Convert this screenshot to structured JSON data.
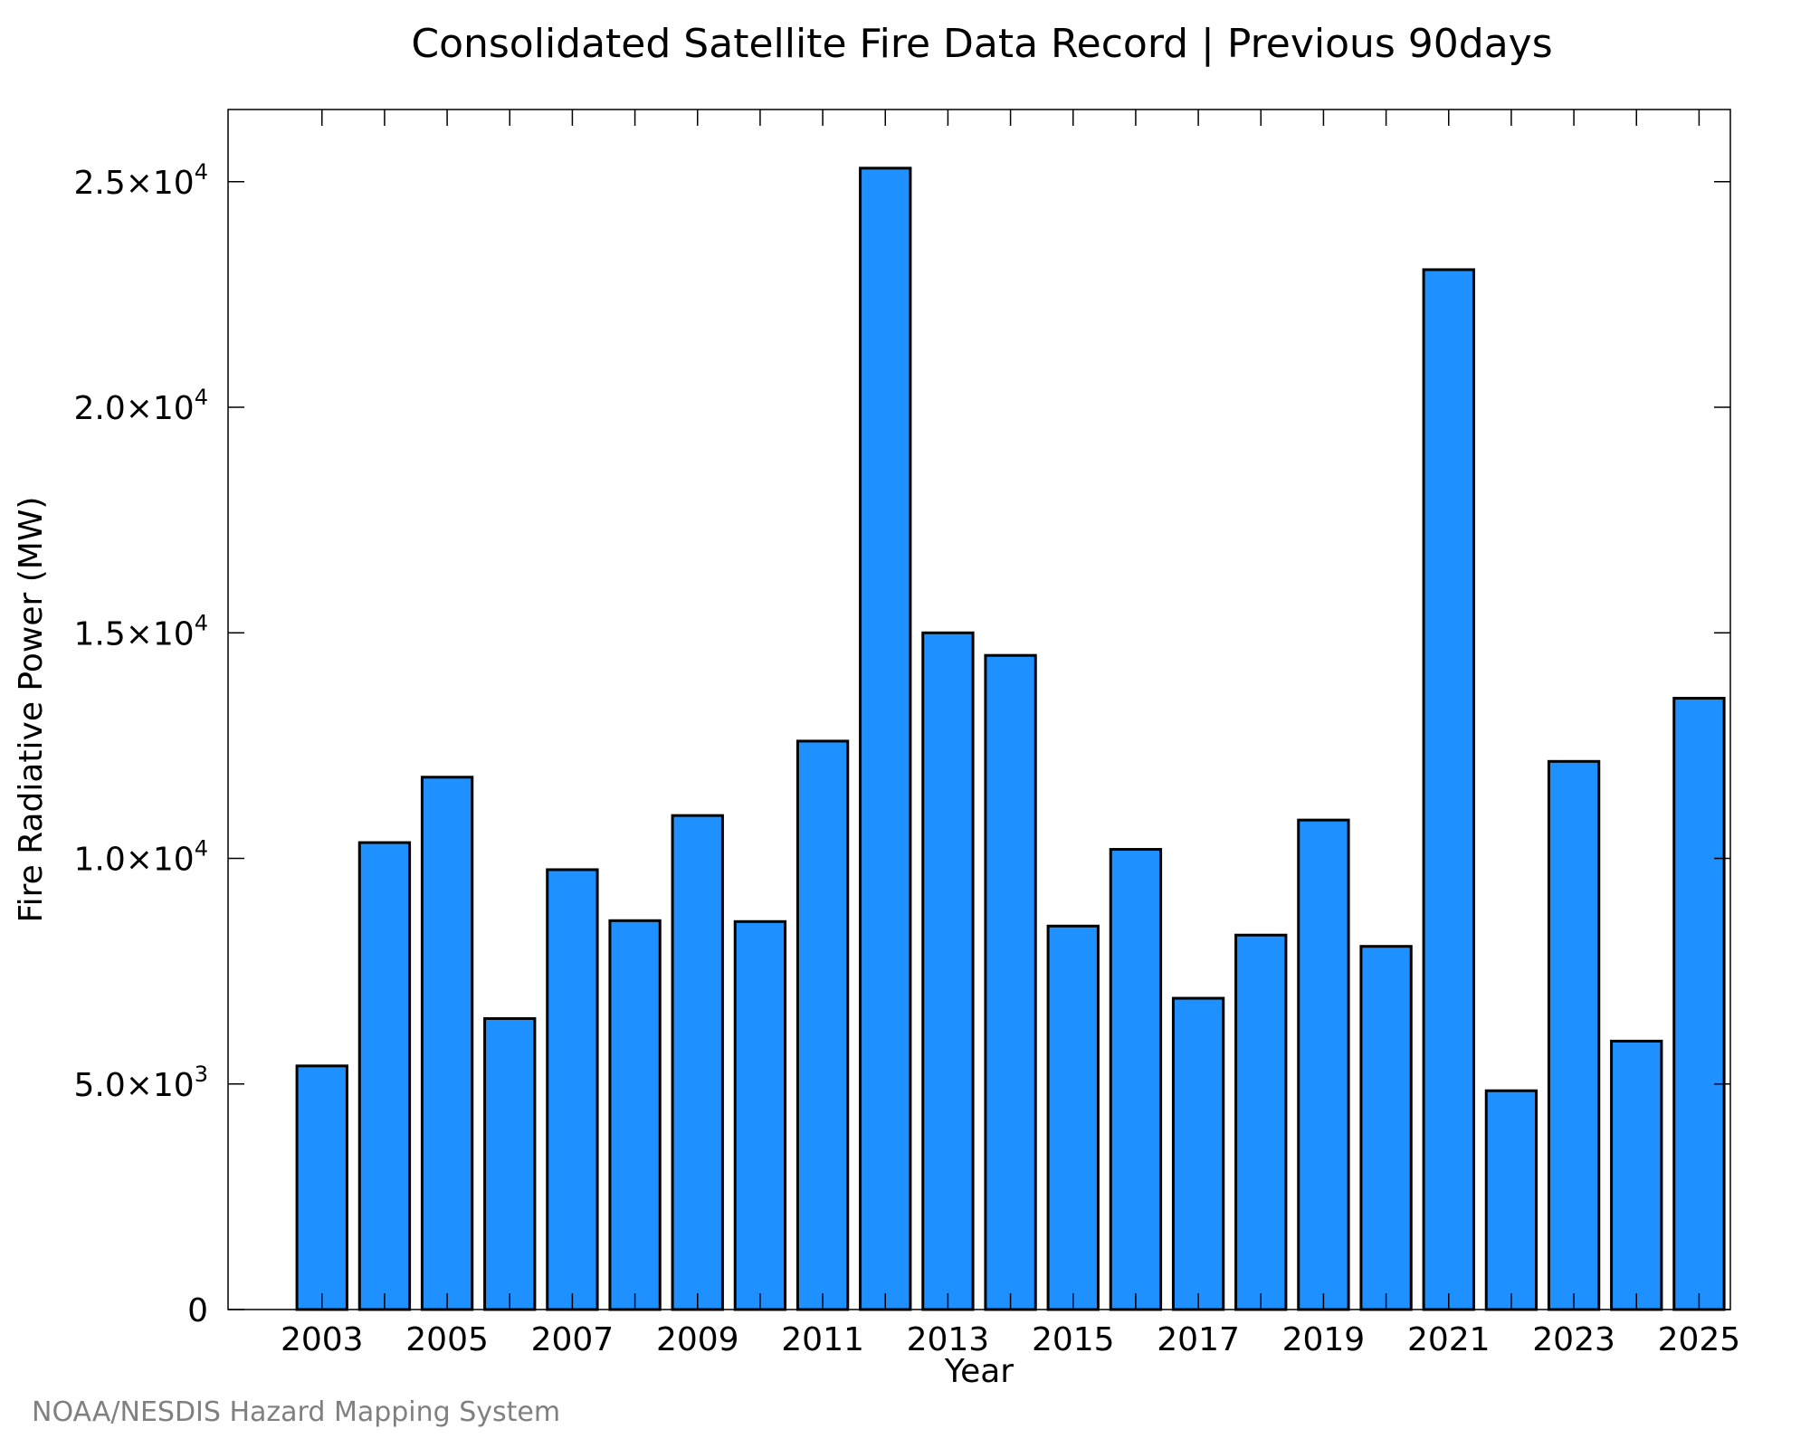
{
  "chart_data": {
    "type": "bar",
    "title": "Consolidated Satellite Fire Data Record | Previous 90days",
    "xlabel": "Year",
    "ylabel": "Fire Radiative Power (MW)",
    "categories": [
      2003,
      2004,
      2005,
      2006,
      2007,
      2008,
      2009,
      2010,
      2011,
      2012,
      2013,
      2014,
      2015,
      2016,
      2017,
      2018,
      2019,
      2020,
      2021,
      2022,
      2023,
      2024,
      2025
    ],
    "values": [
      5400,
      10350,
      11800,
      6450,
      9750,
      8620,
      10950,
      8600,
      12600,
      25300,
      15000,
      14500,
      8500,
      10200,
      6900,
      8300,
      10850,
      8050,
      23050,
      4850,
      12150,
      5950,
      13550
    ],
    "ylim": [
      0,
      26600
    ],
    "yticks": [
      {
        "value": 0,
        "mant": "0",
        "exp": ""
      },
      {
        "value": 5000,
        "mant": "5.0×10",
        "exp": "3"
      },
      {
        "value": 10000,
        "mant": "1.0×10",
        "exp": "4"
      },
      {
        "value": 15000,
        "mant": "1.5×10",
        "exp": "4"
      },
      {
        "value": 20000,
        "mant": "2.0×10",
        "exp": "4"
      },
      {
        "value": 25000,
        "mant": "2.5×10",
        "exp": "4"
      }
    ],
    "xtick_labels": [
      "2003",
      "2005",
      "2007",
      "2009",
      "2011",
      "2013",
      "2015",
      "2017",
      "2019",
      "2021",
      "2023",
      "2025"
    ],
    "bar_color": "#1E90FF",
    "grid": false
  },
  "credit": "NOAA/NESDIS Hazard Mapping System"
}
